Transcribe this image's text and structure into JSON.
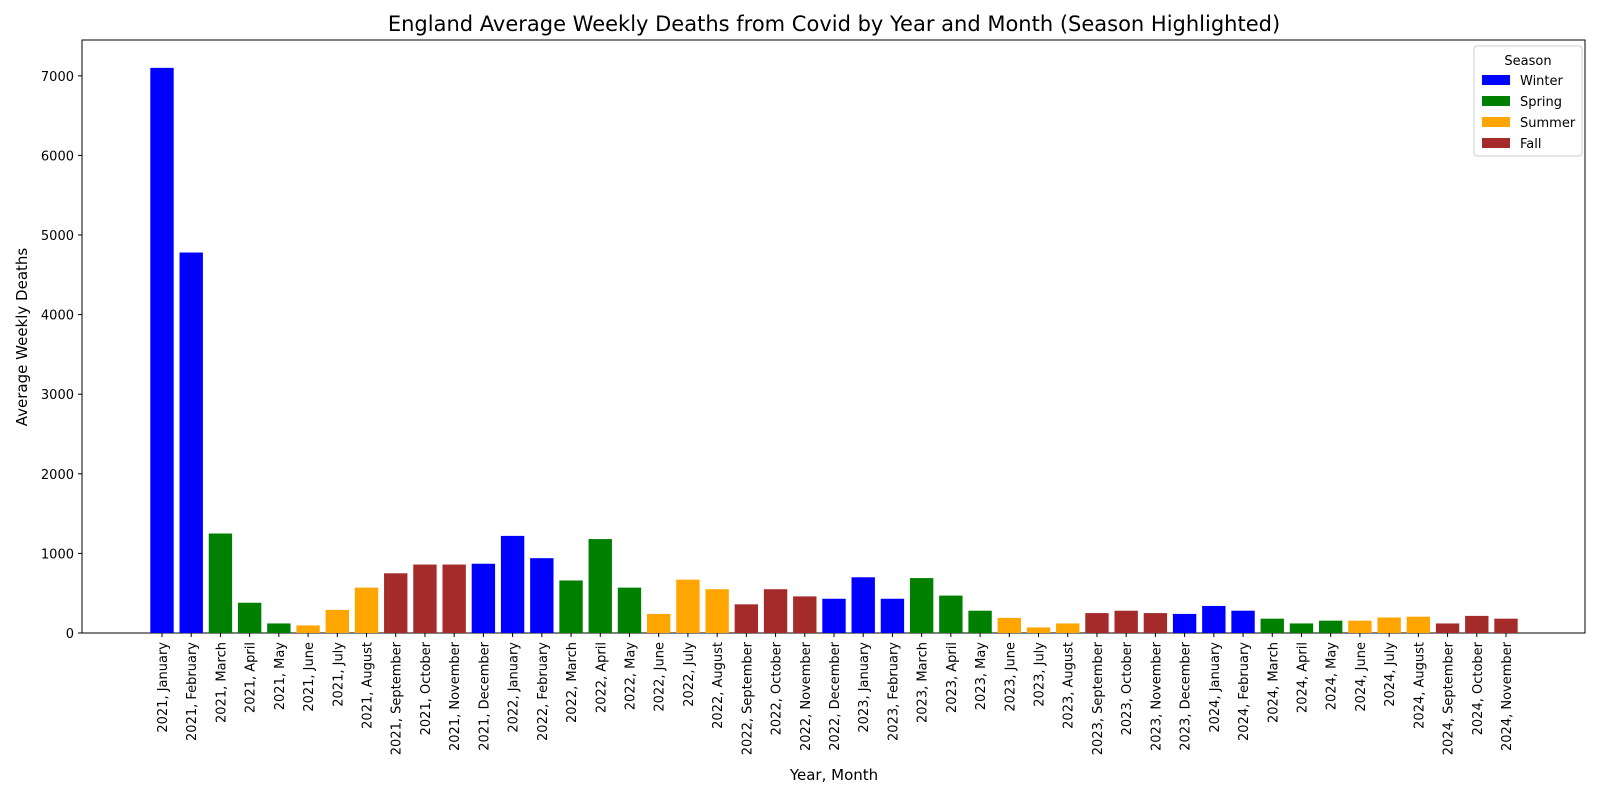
{
  "chart_data": {
    "type": "bar",
    "title": "England Average Weekly Deaths from Covid by Year and Month (Season Highlighted)",
    "xlabel": "Year, Month",
    "ylabel": "Average Weekly Deaths",
    "ylim": [
      0,
      7450
    ],
    "yticks": [
      "0",
      "1000",
      "2000",
      "3000",
      "4000",
      "5000",
      "6000",
      "7000"
    ],
    "grid": false,
    "legend": {
      "title": "Season",
      "placement": "top-right",
      "entries": [
        {
          "label": "Winter",
          "color": "#0000ff"
        },
        {
          "label": "Spring",
          "color": "#008000"
        },
        {
          "label": "Summer",
          "color": "#ffa500"
        },
        {
          "label": "Fall",
          "color": "#a52a2a"
        }
      ]
    },
    "categories": [
      "2021, January",
      "2021, February",
      "2021, March",
      "2021, April",
      "2021, May",
      "2021, June",
      "2021, July",
      "2021, August",
      "2021, September",
      "2021, October",
      "2021, November",
      "2021, December",
      "2022, January",
      "2022, February",
      "2022, March",
      "2022, April",
      "2022, May",
      "2022, June",
      "2022, July",
      "2022, August",
      "2022, September",
      "2022, October",
      "2022, November",
      "2022, December",
      "2023, January",
      "2023, February",
      "2023, March",
      "2023, April",
      "2023, May",
      "2023, June",
      "2023, July",
      "2023, August",
      "2023, September",
      "2023, October",
      "2023, November",
      "2023, December",
      "2024, January",
      "2024, February",
      "2024, March",
      "2024, April",
      "2024, May",
      "2024, June",
      "2024, July",
      "2024, August",
      "2024, September",
      "2024, October",
      "2024, November"
    ],
    "seasons": [
      "Winter",
      "Winter",
      "Spring",
      "Spring",
      "Spring",
      "Summer",
      "Summer",
      "Summer",
      "Fall",
      "Fall",
      "Fall",
      "Winter",
      "Winter",
      "Winter",
      "Spring",
      "Spring",
      "Spring",
      "Summer",
      "Summer",
      "Summer",
      "Fall",
      "Fall",
      "Fall",
      "Winter",
      "Winter",
      "Winter",
      "Spring",
      "Spring",
      "Spring",
      "Summer",
      "Summer",
      "Summer",
      "Fall",
      "Fall",
      "Fall",
      "Winter",
      "Winter",
      "Winter",
      "Spring",
      "Spring",
      "Spring",
      "Summer",
      "Summer",
      "Summer",
      "Fall",
      "Fall",
      "Fall"
    ],
    "values": [
      7100,
      4780,
      1250,
      380,
      120,
      95,
      290,
      570,
      750,
      860,
      860,
      870,
      1220,
      940,
      660,
      1180,
      570,
      240,
      670,
      550,
      360,
      550,
      460,
      430,
      700,
      430,
      690,
      470,
      280,
      190,
      70,
      120,
      250,
      280,
      250,
      240,
      340,
      280,
      180,
      120,
      155,
      155,
      195,
      205,
      120,
      215,
      180
    ]
  }
}
